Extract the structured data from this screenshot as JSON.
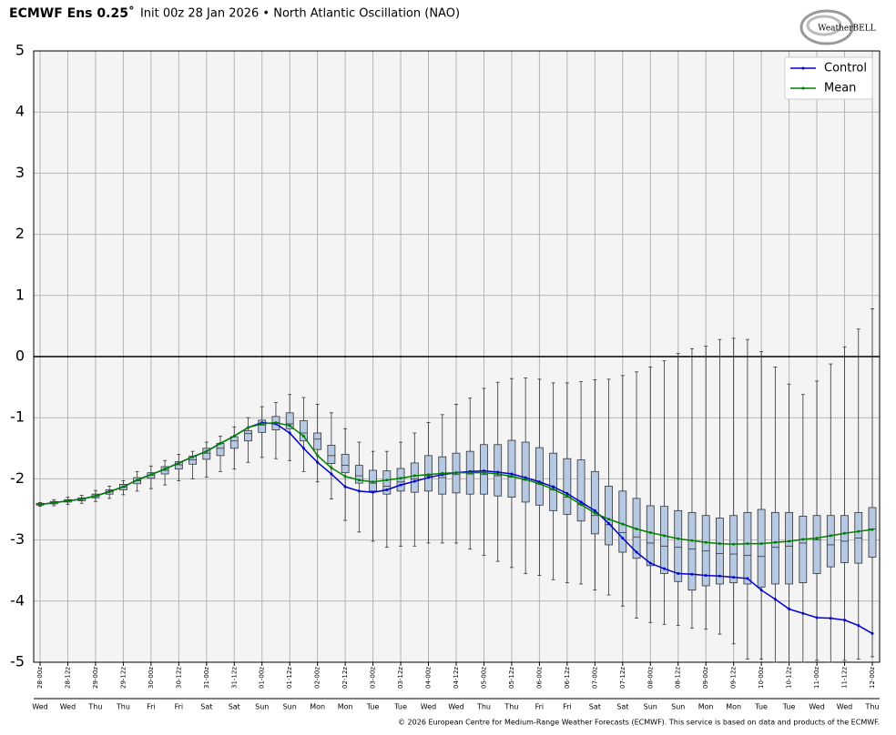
{
  "chart_data": {
    "type": "box-line",
    "title": "ECMWF Ens 0.25˚",
    "subtitle": "Init 00z 28 Jan 2026 • North Atlantic Oscillation (NAO)",
    "logo": "WeatherBELL",
    "footer": "© 2026 European Centre for Medium-Range Weather Forecasts (ECMWF). This service is based on data and products of the ECMWF.",
    "categories": [
      "28-00z",
      null,
      "28-12z",
      null,
      "29-00z",
      null,
      "29-12z",
      null,
      "30-00z",
      null,
      "30-12z",
      null,
      "31-00z",
      null,
      "31-12z",
      null,
      "01-00z",
      null,
      "01-12z",
      null,
      "02-00z",
      null,
      "02-12z",
      null,
      "03-00z",
      null,
      "03-12z",
      null,
      "04-00z",
      null,
      "04-12z",
      null,
      "05-00z",
      null,
      "05-12z",
      null,
      "06-00z",
      null,
      "06-12z",
      null,
      "07-00z",
      null,
      "07-12z",
      null,
      "08-00z",
      null,
      "08-12z",
      null,
      "09-00z",
      null,
      "09-12z",
      null,
      "10-00z",
      null,
      "10-12z",
      null,
      "11-00z",
      null,
      "11-12z",
      null,
      "12-00z"
    ],
    "weekdays": [
      "Wed",
      null,
      "Wed",
      null,
      "Thu",
      null,
      "Thu",
      null,
      "Fri",
      null,
      "Fri",
      null,
      "Sat",
      null,
      "Sat",
      null,
      "Sun",
      null,
      "Sun",
      null,
      "Mon",
      null,
      "Mon",
      null,
      "Tue",
      null,
      "Tue",
      null,
      "Wed",
      null,
      "Wed",
      null,
      "Thu",
      null,
      "Thu",
      null,
      "Fri",
      null,
      "Fri",
      null,
      "Sat",
      null,
      "Sat",
      null,
      "Sun",
      null,
      "Sun",
      null,
      "Mon",
      null,
      "Mon",
      null,
      "Tue",
      null,
      "Tue",
      null,
      "Wed",
      null,
      "Wed",
      null,
      "Thu"
    ],
    "box": {
      "min": [
        -2.45,
        -2.44,
        -2.42,
        -2.4,
        -2.37,
        -2.32,
        -2.26,
        -2.2,
        -2.16,
        -2.1,
        -2.03,
        -2.0,
        -1.97,
        -1.88,
        -1.84,
        -1.73,
        -1.65,
        -1.67,
        -1.7,
        -1.88,
        -2.05,
        -2.33,
        -2.68,
        -2.87,
        -3.02,
        -3.12,
        -3.1,
        -3.1,
        -3.05,
        -3.05,
        -3.05,
        -3.15,
        -3.25,
        -3.35,
        -3.45,
        -3.55,
        -3.58,
        -3.65,
        -3.7,
        -3.72,
        -3.82,
        -3.9,
        -4.08,
        -4.28,
        -4.35,
        -4.38,
        -4.4,
        -4.44,
        -4.46,
        -4.54,
        -4.7,
        -4.95,
        -4.95,
        -5.0,
        -5.0,
        -5.0,
        -4.97,
        -5.0,
        -4.97,
        -4.95,
        -4.91
      ],
      "q1": [
        -2.43,
        -2.41,
        -2.38,
        -2.36,
        -2.31,
        -2.25,
        -2.18,
        -2.08,
        -1.99,
        -1.92,
        -1.84,
        -1.76,
        -1.68,
        -1.62,
        -1.5,
        -1.38,
        -1.24,
        -1.2,
        -1.18,
        -1.38,
        -1.52,
        -1.75,
        -1.9,
        -2.07,
        -2.2,
        -2.25,
        -2.2,
        -2.22,
        -2.2,
        -2.25,
        -2.23,
        -2.25,
        -2.25,
        -2.28,
        -2.3,
        -2.38,
        -2.43,
        -2.52,
        -2.58,
        -2.69,
        -2.9,
        -3.08,
        -3.2,
        -3.3,
        -3.42,
        -3.55,
        -3.68,
        -3.82,
        -3.75,
        -3.72,
        -3.7,
        -3.72,
        -3.77,
        -3.72,
        -3.72,
        -3.7,
        -3.55,
        -3.44,
        -3.37,
        -3.38,
        -3.28
      ],
      "median": [
        -2.42,
        -2.39,
        -2.36,
        -2.33,
        -2.28,
        -2.21,
        -2.14,
        -2.03,
        -1.94,
        -1.86,
        -1.77,
        -1.69,
        -1.58,
        -1.5,
        -1.38,
        -1.26,
        -1.12,
        -1.08,
        -1.1,
        -1.25,
        -1.35,
        -1.62,
        -1.78,
        -1.95,
        -2.07,
        -2.12,
        -2.05,
        -2.0,
        -1.95,
        -1.98,
        -1.93,
        -1.92,
        -1.93,
        -1.95,
        -1.97,
        -2.02,
        -2.08,
        -2.18,
        -2.3,
        -2.42,
        -2.6,
        -2.75,
        -2.88,
        -2.95,
        -3.05,
        -3.1,
        -3.12,
        -3.15,
        -3.18,
        -3.22,
        -3.23,
        -3.25,
        -3.27,
        -3.12,
        -3.1,
        -3.05,
        -3.0,
        -3.08,
        -3.02,
        -2.97,
        -2.82
      ],
      "q3": [
        -2.4,
        -2.37,
        -2.34,
        -2.31,
        -2.25,
        -2.18,
        -2.09,
        -1.98,
        -1.9,
        -1.8,
        -1.72,
        -1.63,
        -1.5,
        -1.42,
        -1.31,
        -1.21,
        -1.04,
        -0.98,
        -0.92,
        -1.05,
        -1.25,
        -1.45,
        -1.6,
        -1.78,
        -1.86,
        -1.87,
        -1.83,
        -1.74,
        -1.62,
        -1.64,
        -1.58,
        -1.55,
        -1.44,
        -1.44,
        -1.37,
        -1.4,
        -1.49,
        -1.58,
        -1.67,
        -1.69,
        -1.88,
        -2.12,
        -2.2,
        -2.32,
        -2.44,
        -2.45,
        -2.52,
        -2.55,
        -2.6,
        -2.64,
        -2.6,
        -2.55,
        -2.5,
        -2.55,
        -2.55,
        -2.61,
        -2.6,
        -2.6,
        -2.6,
        -2.55,
        -2.47
      ],
      "max": [
        -2.39,
        -2.34,
        -2.3,
        -2.27,
        -2.19,
        -2.12,
        -2.03,
        -1.88,
        -1.79,
        -1.7,
        -1.6,
        -1.55,
        -1.4,
        -1.3,
        -1.15,
        -1.0,
        -0.82,
        -0.75,
        -0.62,
        -0.67,
        -0.78,
        -0.92,
        -1.18,
        -1.4,
        -1.55,
        -1.55,
        -1.4,
        -1.25,
        -1.08,
        -0.95,
        -0.78,
        -0.68,
        -0.52,
        -0.42,
        -0.36,
        -0.35,
        -0.37,
        -0.43,
        -0.43,
        -0.41,
        -0.38,
        -0.37,
        -0.31,
        -0.25,
        -0.17,
        -0.07,
        0.05,
        0.13,
        0.17,
        0.28,
        0.3,
        0.28,
        0.08,
        -0.17,
        -0.45,
        -0.62,
        -0.4,
        -0.12,
        0.16,
        0.45,
        0.78
      ],
      "fill": "#b7c9e2",
      "stroke": "#333333"
    },
    "series": [
      {
        "name": "Control",
        "color": "#0000cc",
        "values": [
          -2.42,
          -2.39,
          -2.36,
          -2.33,
          -2.28,
          -2.21,
          -2.13,
          -2.02,
          -1.93,
          -1.84,
          -1.74,
          -1.64,
          -1.55,
          -1.42,
          -1.3,
          -1.16,
          -1.08,
          -1.1,
          -1.25,
          -1.5,
          -1.73,
          -1.92,
          -2.13,
          -2.2,
          -2.22,
          -2.18,
          -2.1,
          -2.04,
          -1.98,
          -1.93,
          -1.9,
          -1.88,
          -1.87,
          -1.89,
          -1.92,
          -1.98,
          -2.05,
          -2.13,
          -2.24,
          -2.38,
          -2.52,
          -2.73,
          -2.97,
          -3.2,
          -3.38,
          -3.47,
          -3.55,
          -3.56,
          -3.58,
          -3.59,
          -3.61,
          -3.63,
          -3.82,
          -3.97,
          -4.13,
          -4.2,
          -4.27,
          -4.28,
          -4.31,
          -4.4,
          -4.53
        ]
      },
      {
        "name": "Mean",
        "color": "#008000",
        "values": [
          -2.42,
          -2.39,
          -2.36,
          -2.33,
          -2.28,
          -2.21,
          -2.13,
          -2.02,
          -1.93,
          -1.84,
          -1.74,
          -1.64,
          -1.55,
          -1.42,
          -1.3,
          -1.16,
          -1.1,
          -1.08,
          -1.13,
          -1.3,
          -1.62,
          -1.82,
          -1.96,
          -2.02,
          -2.05,
          -2.02,
          -1.99,
          -1.95,
          -1.93,
          -1.91,
          -1.9,
          -1.9,
          -1.9,
          -1.92,
          -1.96,
          -2.01,
          -2.08,
          -2.17,
          -2.28,
          -2.42,
          -2.56,
          -2.66,
          -2.74,
          -2.82,
          -2.88,
          -2.93,
          -2.98,
          -3.01,
          -3.04,
          -3.06,
          -3.07,
          -3.06,
          -3.06,
          -3.04,
          -3.02,
          -2.99,
          -2.97,
          -2.93,
          -2.89,
          -2.86,
          -2.83
        ]
      }
    ],
    "ylim": [
      -5,
      5
    ],
    "yticks": [
      5,
      4,
      3,
      2,
      1,
      0,
      -1,
      -2,
      -3,
      -4,
      -5
    ],
    "grid": true,
    "zero_line": true,
    "legend": "top-right"
  }
}
